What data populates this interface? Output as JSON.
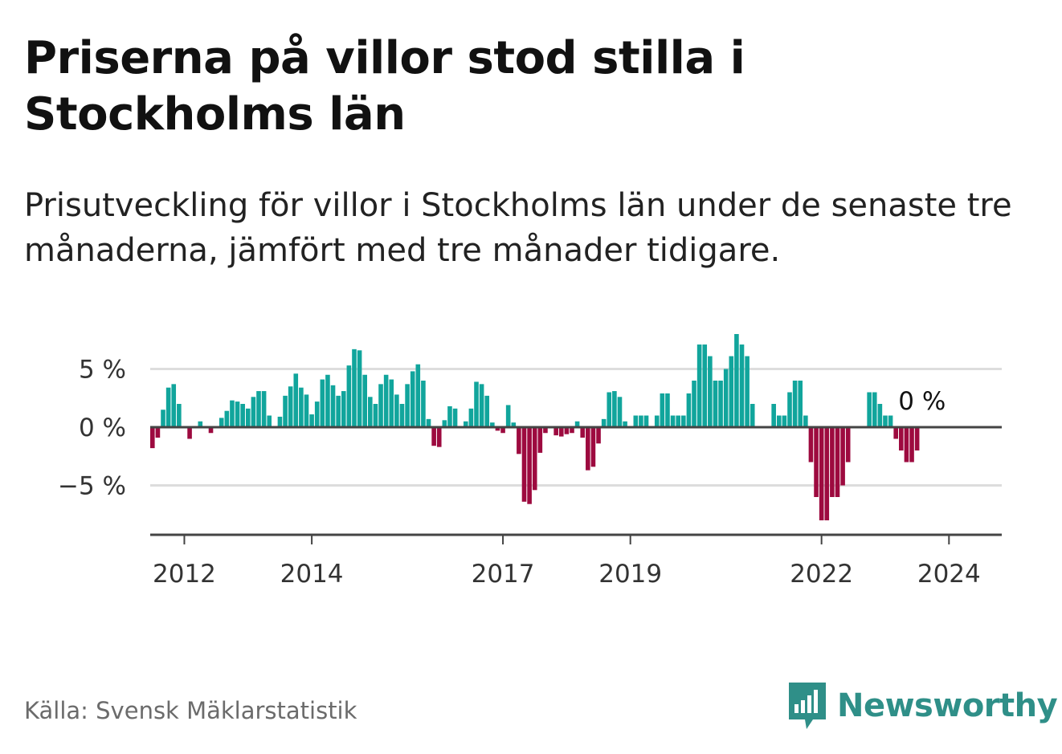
{
  "title": "Priserna på villor stod stilla i Stockholms län",
  "subtitle": "Prisutveckling för villor i Stockholms län under de senaste tre månaderna, jämfört med tre månader tidigare.",
  "source": "Källa: Svensk Mäklarstatistik",
  "brand": {
    "name": "Newsworthy",
    "icon": "newsworthy-logo-icon"
  },
  "colors": {
    "positive": "#11a59c",
    "negative": "#9d0a3f",
    "grid": "#dddddd",
    "axis": "#444444",
    "brand": "#2f8f88"
  },
  "chart_data": {
    "type": "bar",
    "title": "Priserna på villor stod stilla i Stockholms län",
    "ylabel": "",
    "xlabel": "",
    "ylim": [
      -9.5,
      7.5
    ],
    "yticks": [
      {
        "value": 5,
        "label": "5 %"
      },
      {
        "value": 0,
        "label": "0 %"
      },
      {
        "value": -5,
        "label": "−5 %"
      }
    ],
    "xticks": [
      {
        "index": 6,
        "label": "2012"
      },
      {
        "index": 30,
        "label": "2014"
      },
      {
        "index": 66,
        "label": "2017"
      },
      {
        "index": 90,
        "label": "2019"
      },
      {
        "index": 126,
        "label": "2022"
      },
      {
        "index": 150,
        "label": "2024"
      }
    ],
    "start": "2011-07",
    "end_label": "0 %",
    "values": [
      -1.8,
      -0.9,
      1.5,
      3.4,
      3.7,
      2.0,
      0,
      -1.0,
      0,
      0.5,
      0,
      -0.5,
      0,
      0.8,
      1.4,
      2.3,
      2.2,
      2.0,
      1.6,
      2.6,
      3.1,
      3.1,
      1.0,
      0,
      0.9,
      2.7,
      3.5,
      4.6,
      3.4,
      2.8,
      1.1,
      2.2,
      4.1,
      4.5,
      3.6,
      2.7,
      3.1,
      5.3,
      6.7,
      6.6,
      4.5,
      2.6,
      2.0,
      3.7,
      4.5,
      4.1,
      2.8,
      2.0,
      3.7,
      4.8,
      5.4,
      4.0,
      0.7,
      -1.6,
      -1.7,
      0.6,
      1.8,
      1.6,
      0,
      0.5,
      1.6,
      3.9,
      3.7,
      2.7,
      0.4,
      -0.3,
      -0.5,
      1.9,
      0.4,
      -2.3,
      -6.4,
      -6.6,
      -5.4,
      -2.2,
      -0.5,
      0,
      -0.7,
      -0.8,
      -0.6,
      -0.5,
      0.5,
      -0.9,
      -3.7,
      -3.4,
      -1.4,
      0.7,
      3.0,
      3.1,
      2.6,
      0.5,
      0,
      1.0,
      1.0,
      1.0,
      0,
      1.0,
      2.9,
      2.9,
      1.0,
      1.0,
      1.0,
      2.9,
      4.0,
      7.1,
      7.1,
      6.1,
      4.0,
      4.0,
      5.0,
      6.1,
      8.0,
      7.1,
      6.1,
      2.0,
      0,
      0,
      0,
      2.0,
      1.0,
      1.0,
      3.0,
      4.0,
      4.0,
      1.0,
      -3.0,
      -6.0,
      -8.0,
      -8.0,
      -6.0,
      -6.0,
      -5.0,
      -3.0,
      0,
      0,
      0,
      3.0,
      3.0,
      2.0,
      1.0,
      1.0,
      -1.0,
      -2.0,
      -3.0,
      -3.0,
      -2.0,
      0
    ]
  }
}
